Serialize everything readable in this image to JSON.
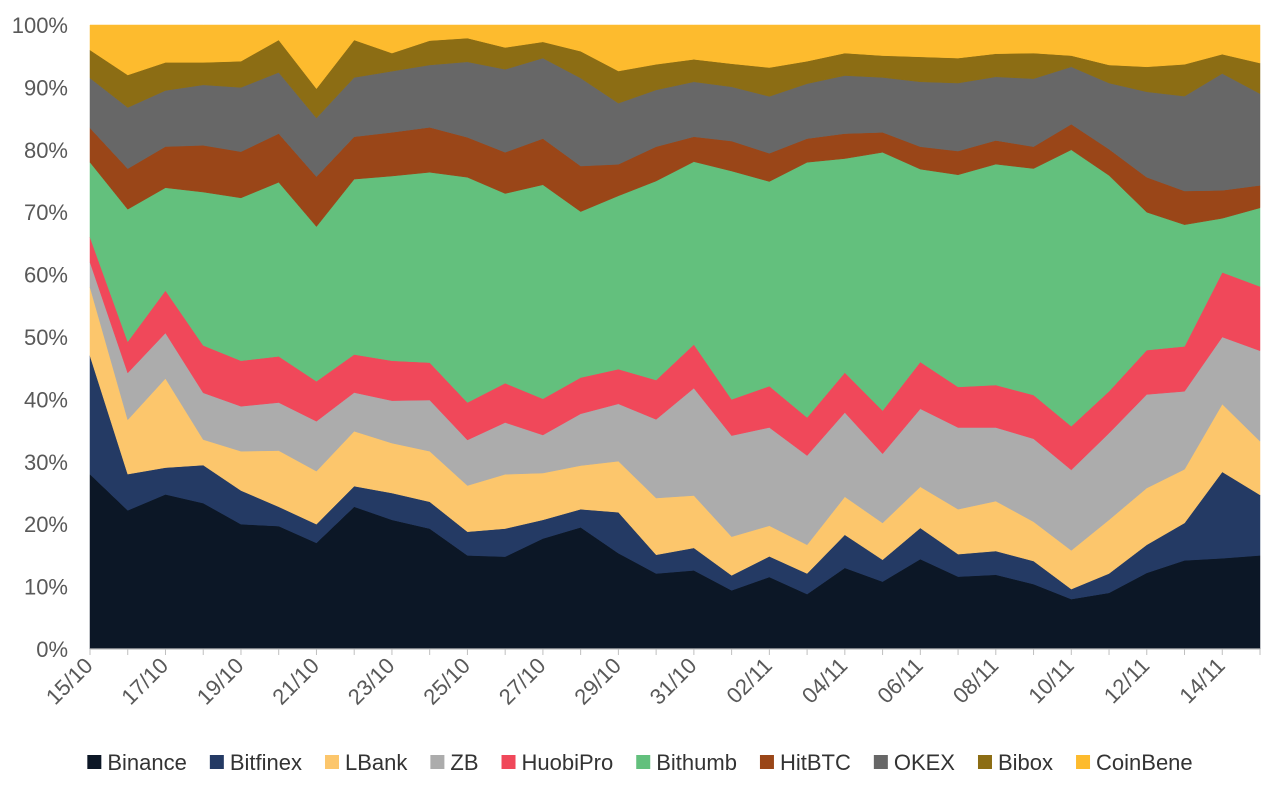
{
  "chart_data": {
    "type": "area",
    "stacked": true,
    "normalized_percent": true,
    "x": [
      "15/10",
      "16/10",
      "17/10",
      "18/10",
      "19/10",
      "20/10",
      "21/10",
      "22/10",
      "23/10",
      "24/10",
      "25/10",
      "26/10",
      "27/10",
      "28/10",
      "29/10",
      "30/10",
      "31/10",
      "01/11",
      "02/11",
      "03/11",
      "04/11",
      "05/11",
      "06/11",
      "07/11",
      "08/11",
      "09/11",
      "10/11",
      "11/11",
      "12/11",
      "13/11",
      "14/11",
      "15/11"
    ],
    "x_tick_labels": [
      "15/10",
      "17/10",
      "19/10",
      "21/10",
      "23/10",
      "25/10",
      "27/10",
      "29/10",
      "31/10",
      "02/11",
      "04/11",
      "06/11",
      "08/11",
      "10/11",
      "12/11",
      "14/11"
    ],
    "y_tick_labels": [
      "0%",
      "10%",
      "20%",
      "30%",
      "40%",
      "50%",
      "60%",
      "70%",
      "80%",
      "90%",
      "100%"
    ],
    "ylim": [
      0,
      100
    ],
    "grid": false,
    "legend_position": "bottom",
    "series": [
      {
        "name": "Binance",
        "color": "#0c1726",
        "values": [
          28,
          22.2,
          24.8,
          23.4,
          20,
          19.7,
          17,
          22.8,
          20.7,
          19.3,
          15,
          14.8,
          17.7,
          19.5,
          15.2,
          12.1,
          12.6,
          9.4,
          11.5,
          8.8,
          13,
          10.8,
          14.4,
          11.6,
          11.9,
          10.4,
          8,
          9,
          12.2,
          14.2,
          14.6,
          15
        ]
      },
      {
        "name": "Bitfinex",
        "color": "#243a64",
        "values": [
          19,
          5.8,
          4.3,
          6.1,
          5.4,
          3.1,
          3,
          3.3,
          4.3,
          4.3,
          3.8,
          4.5,
          3,
          2.9,
          6.5,
          3,
          3.6,
          2.4,
          3.3,
          3.3,
          5.3,
          3.5,
          5,
          3.6,
          3.8,
          3.7,
          1.6,
          3.1,
          4.5,
          6,
          13.9,
          9.7
        ]
      },
      {
        "name": "LBank",
        "color": "#fcc66c",
        "values": [
          11,
          8.7,
          14.3,
          4.1,
          6.3,
          9,
          8.5,
          8.8,
          8,
          8.1,
          7.4,
          8.7,
          7.5,
          7,
          8.1,
          9.1,
          8.4,
          6.2,
          4.9,
          4.6,
          6.1,
          5.9,
          6.6,
          7.2,
          8,
          6.3,
          6.2,
          8.6,
          9.1,
          8.6,
          10.9,
          8.6
        ]
      },
      {
        "name": "ZB",
        "color": "#acacac",
        "values": [
          4,
          7.5,
          7.3,
          7.5,
          7.2,
          7.7,
          8,
          6.2,
          6.8,
          8.2,
          7.3,
          8.3,
          6.1,
          8.3,
          9.1,
          12.6,
          17.2,
          16.2,
          15.7,
          14.3,
          13.5,
          11.1,
          12.5,
          13.1,
          11.8,
          13.3,
          12.9,
          13.9,
          15,
          12.5,
          10.8,
          14.5
        ]
      },
      {
        "name": "HuobiPro",
        "color": "#f0485a",
        "values": [
          4,
          5,
          6.8,
          7.6,
          7.3,
          7.4,
          6.4,
          6.1,
          6.4,
          6,
          6,
          6.3,
          5.8,
          5.8,
          5.5,
          6.3,
          7,
          5.8,
          6.6,
          6.1,
          6.4,
          6.9,
          7.5,
          6.5,
          6.8,
          7,
          7,
          6.7,
          7.1,
          7.2,
          10.4,
          10.3
        ]
      },
      {
        "name": "Bithumb",
        "color": "#63c07d",
        "values": [
          12,
          21.2,
          16.5,
          24.6,
          26.1,
          27.9,
          24.8,
          28.1,
          29.6,
          30.5,
          36.1,
          30.4,
          34.3,
          26.6,
          27.5,
          31.9,
          29.3,
          36.6,
          32.7,
          40.9,
          34.3,
          41.4,
          30.9,
          34,
          35.4,
          36.3,
          44.3,
          34.6,
          22.1,
          19.5,
          8.7,
          12.6
        ]
      },
      {
        "name": "HitBTC",
        "color": "#9a4618",
        "values": [
          5.5,
          6.5,
          6.6,
          7.5,
          7.4,
          7.8,
          8,
          6.8,
          7,
          7.2,
          6.4,
          6.6,
          7.4,
          7.3,
          5,
          5.5,
          4,
          4.8,
          4.5,
          3.8,
          4,
          3.2,
          3.6,
          3.8,
          3.8,
          3.5,
          4.1,
          4.2,
          5.6,
          5.4,
          4.5,
          3.6
        ]
      },
      {
        "name": "OKEX",
        "color": "#676767",
        "values": [
          8,
          9.8,
          9,
          9.7,
          10.3,
          9.8,
          9.4,
          9.5,
          9.8,
          10,
          12.1,
          13.3,
          12.9,
          14.1,
          9.7,
          9.1,
          8.8,
          8.7,
          9.1,
          8.8,
          9.3,
          8.8,
          10.4,
          10.9,
          10.2,
          10.9,
          9.2,
          10.6,
          13.7,
          15.2,
          18.8,
          14.7
        ]
      },
      {
        "name": "Bibox",
        "color": "#8c6d14",
        "values": [
          4.5,
          5.2,
          4.5,
          3.6,
          4.2,
          5.2,
          4.7,
          6,
          2.9,
          3.9,
          3.8,
          3.5,
          2.6,
          4.3,
          5.1,
          4.1,
          3.6,
          3.7,
          4.6,
          3.6,
          3.6,
          3.5,
          4,
          4,
          3.7,
          4.1,
          1.8,
          2.9,
          4,
          5.1,
          3.1,
          4.9
        ]
      },
      {
        "name": "CoinBene",
        "color": "#fdbb2e",
        "values": [
          4,
          8,
          6,
          6,
          5.8,
          2.4,
          10.2,
          2.4,
          4.5,
          2.5,
          2.1,
          3.6,
          2.7,
          4.2,
          7.3,
          6.3,
          5.5,
          6.2,
          6.8,
          5.8,
          4.5,
          4.9,
          5.1,
          5.3,
          4.6,
          4.5,
          4.9,
          6.4,
          6.7,
          6.3,
          4.7,
          6.1
        ]
      }
    ]
  }
}
